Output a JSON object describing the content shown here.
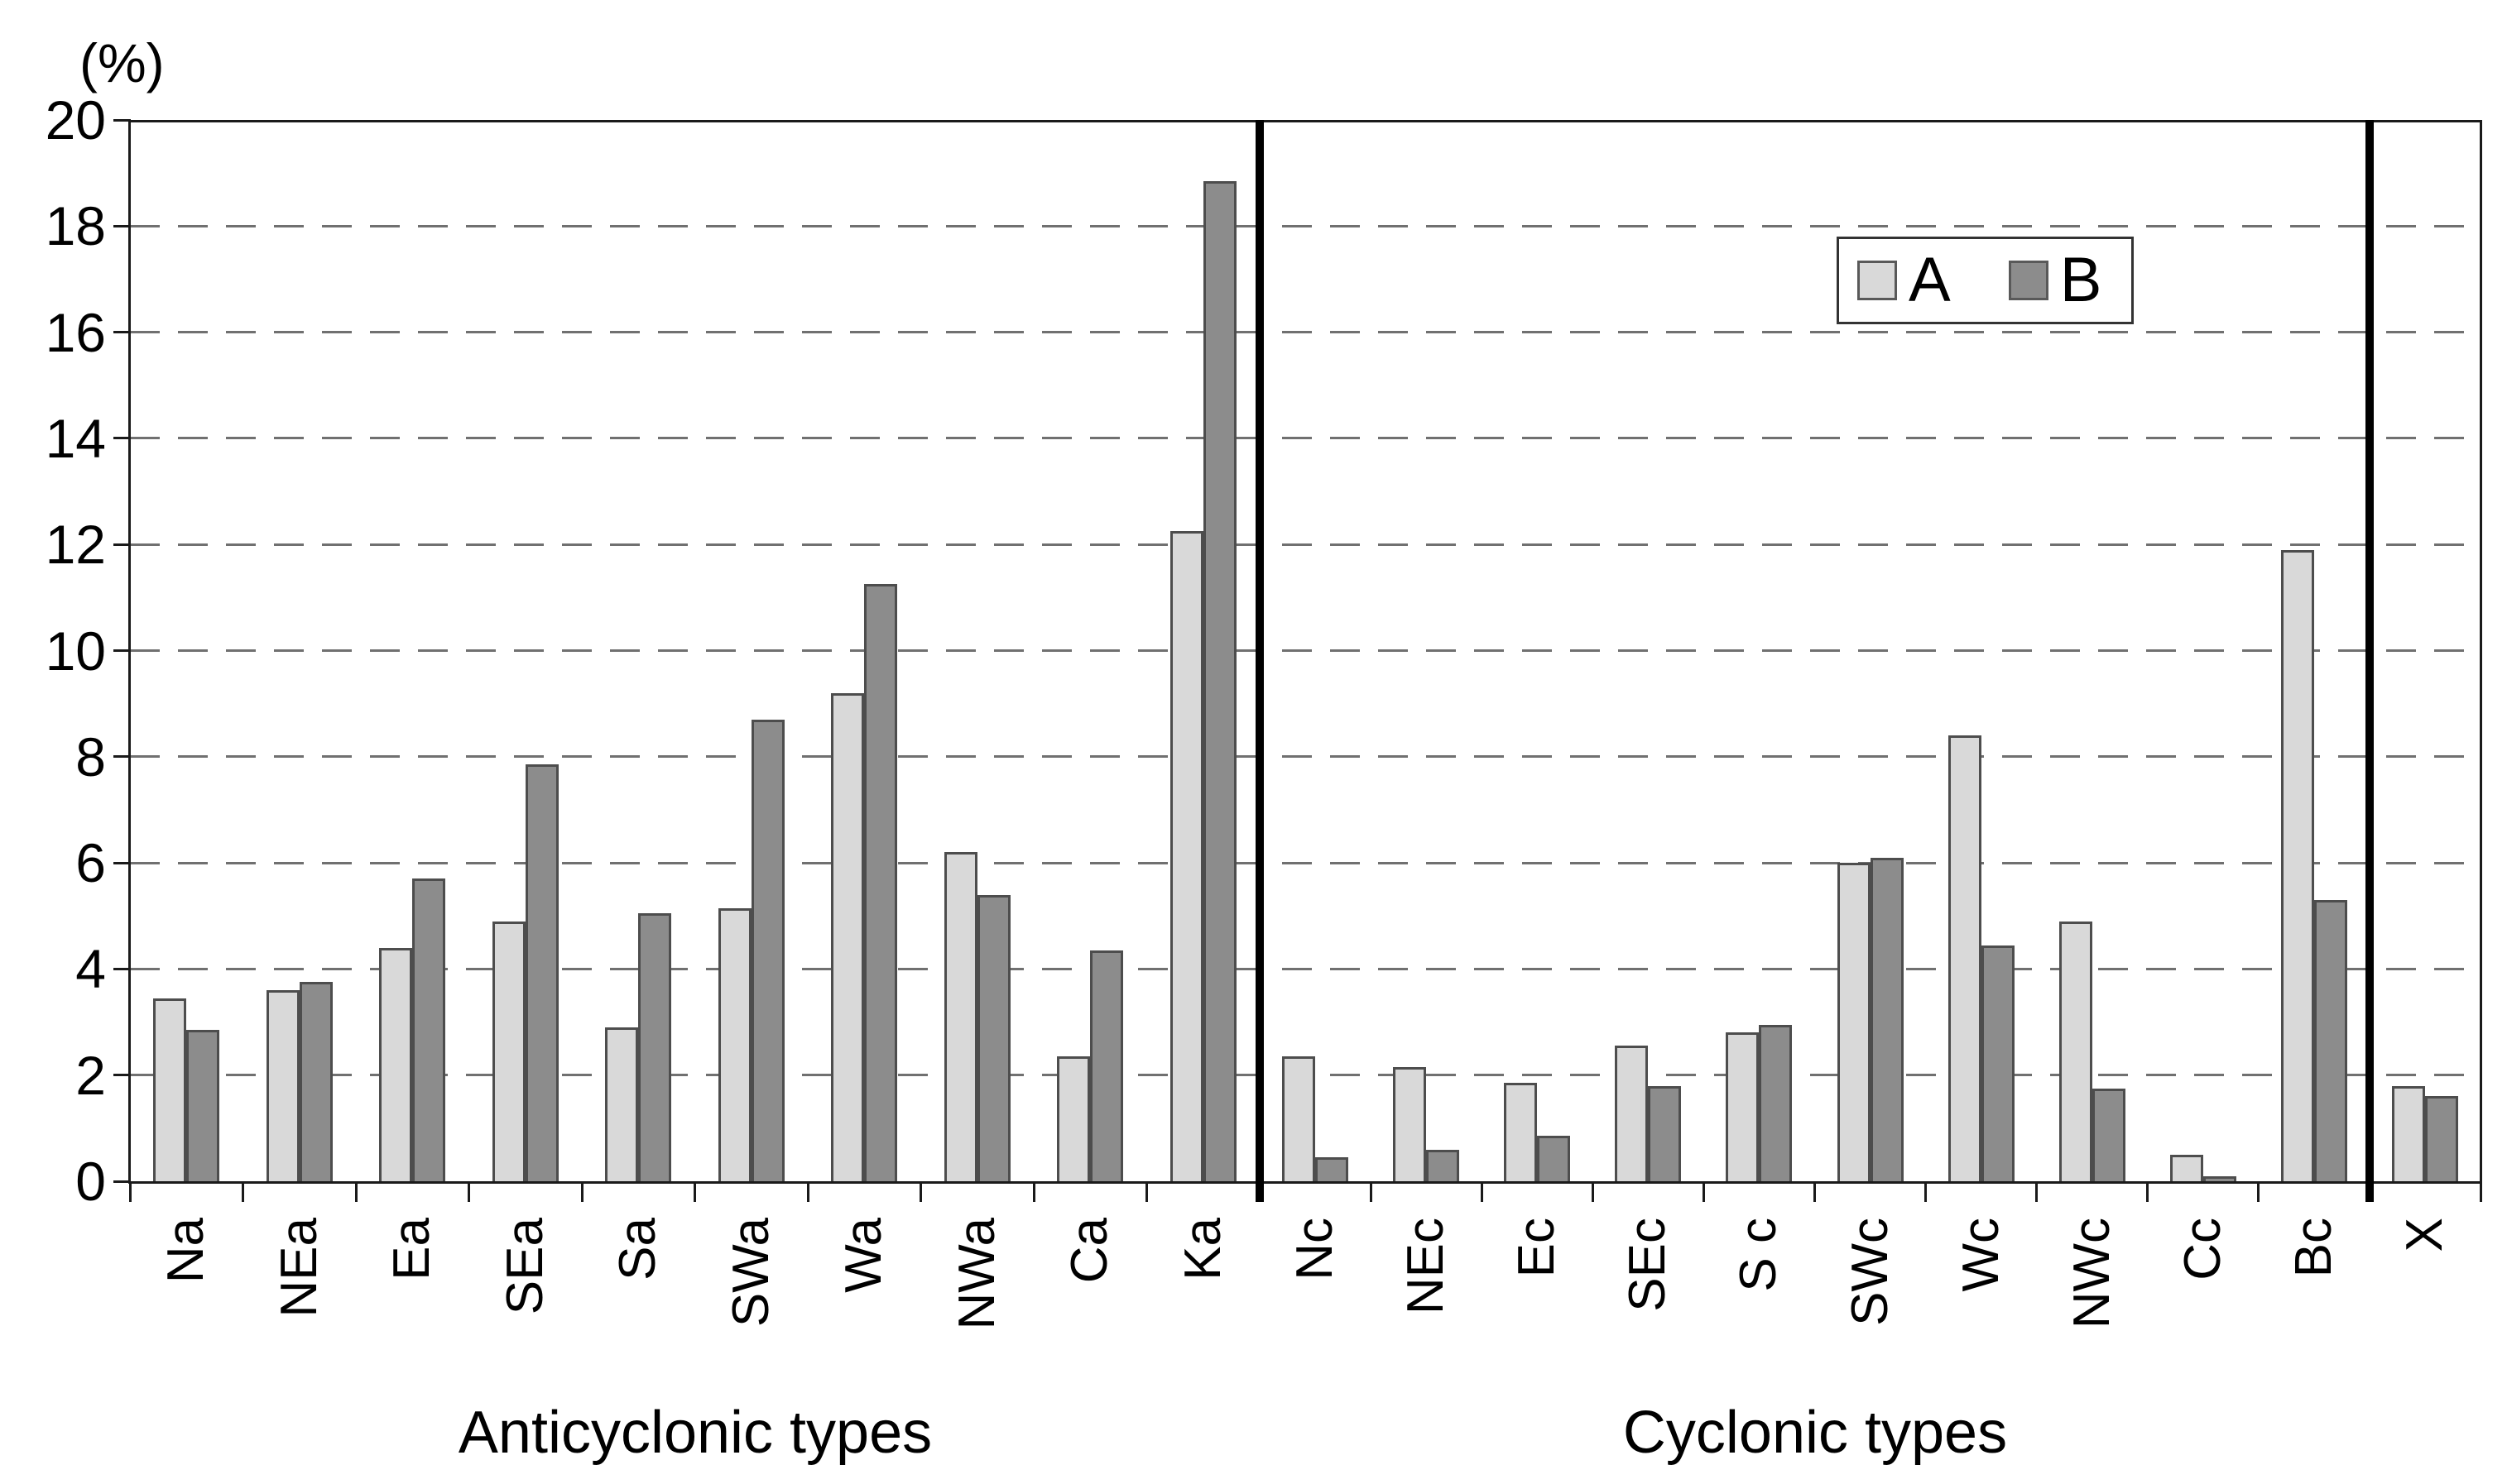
{
  "chart_data": {
    "type": "bar",
    "title": "",
    "ylabel": "(%)",
    "xlabel": "",
    "ylim": [
      0,
      20
    ],
    "yticks": [
      0,
      2,
      4,
      6,
      8,
      10,
      12,
      14,
      16,
      18,
      20
    ],
    "grid": "horizontal dashed, every 2",
    "legend": [
      "A",
      "B"
    ],
    "legend_position": "top-right",
    "groups": [
      {
        "label": "Anticyclonic types",
        "categories": [
          "Na",
          "NEa",
          "Ea",
          "SEa",
          "Sa",
          "SWa",
          "Wa",
          "NWa",
          "Ca",
          "Ka"
        ],
        "series": [
          {
            "name": "A",
            "values": [
              3.45,
              3.6,
              4.4,
              4.9,
              2.9,
              5.15,
              9.2,
              6.2,
              2.35,
              12.25
            ]
          },
          {
            "name": "B",
            "values": [
              2.85,
              3.75,
              5.7,
              7.85,
              5.05,
              8.7,
              11.25,
              5.4,
              4.35,
              18.85
            ]
          }
        ]
      },
      {
        "label": "Cyclonic types",
        "categories": [
          "Nc",
          "NEc",
          "Ec",
          "SEc",
          "S c",
          "SWc",
          "Wc",
          "NWc",
          "Cc",
          "Bc"
        ],
        "series": [
          {
            "name": "A",
            "values": [
              2.35,
              2.15,
              1.85,
              2.55,
              2.8,
              6.0,
              8.4,
              4.9,
              0.5,
              11.9
            ]
          },
          {
            "name": "B",
            "values": [
              0.45,
              0.6,
              0.85,
              1.8,
              2.95,
              6.1,
              4.45,
              1.75,
              0.1,
              5.3
            ]
          }
        ]
      },
      {
        "label": "",
        "categories": [
          "X"
        ],
        "series": [
          {
            "name": "A",
            "values": [
              1.8
            ]
          },
          {
            "name": "B",
            "values": [
              1.6
            ]
          }
        ]
      }
    ],
    "colors": {
      "series_A_fill": "#d9d9d9",
      "series_B_fill": "#8c8c8c",
      "bar_border": "#4d4d4d",
      "grid": "#707070",
      "axis": "#1a1a1a",
      "separator": "#000000",
      "background": "#ffffff",
      "text": "#000000"
    }
  }
}
